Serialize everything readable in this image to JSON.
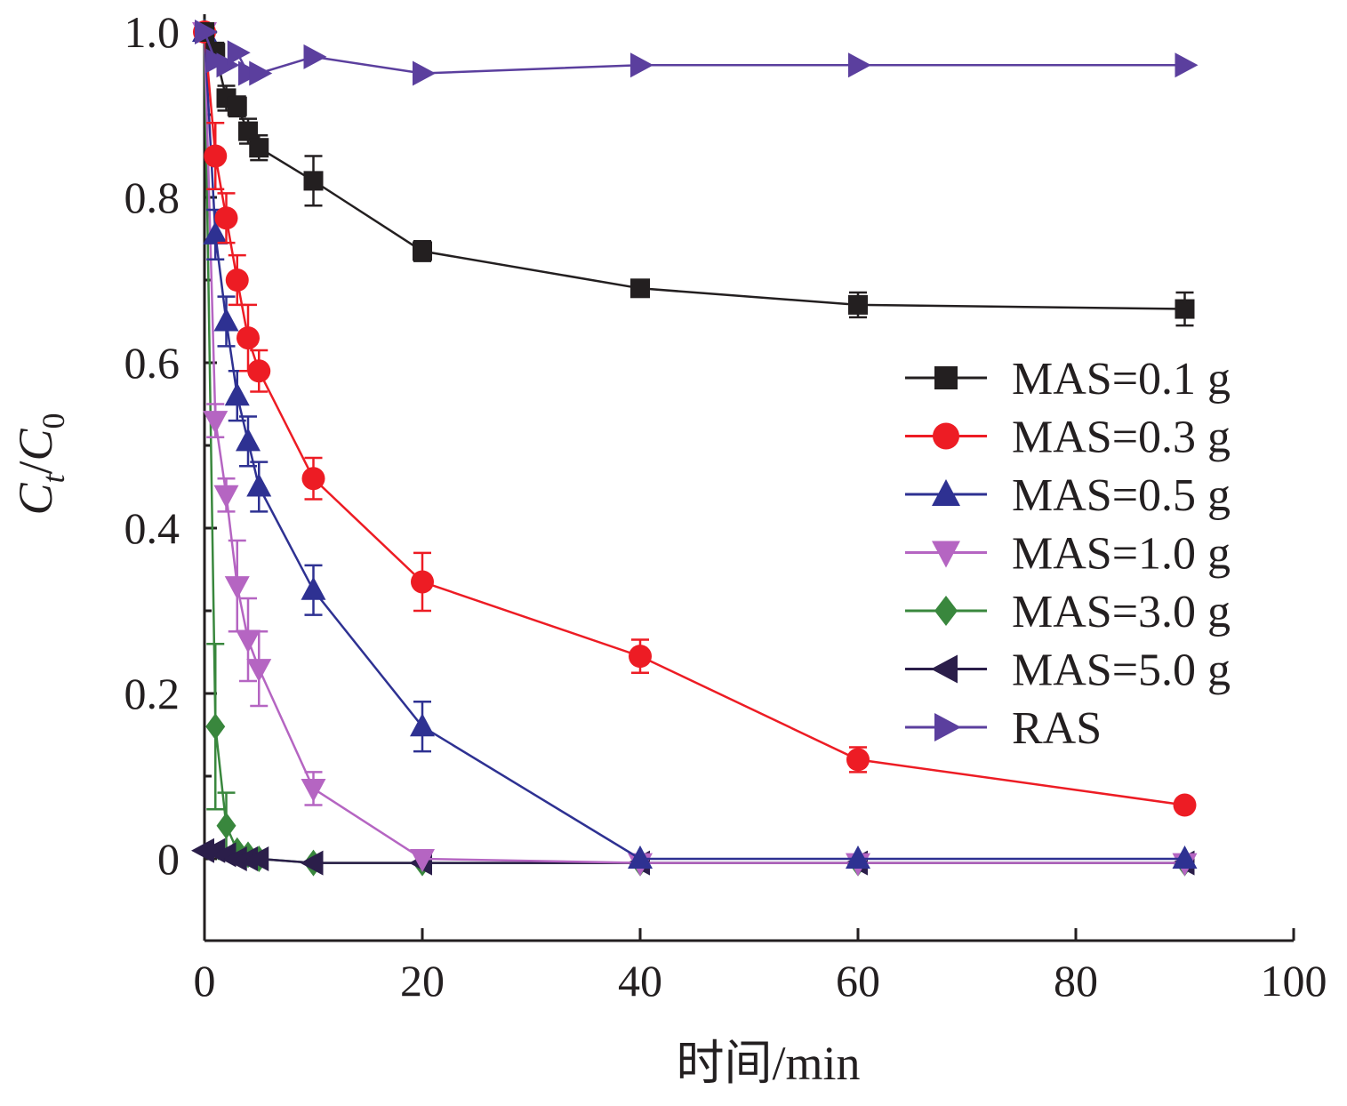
{
  "chart_data": {
    "type": "line",
    "xlabel": "时间/min",
    "ylabel_main": "C",
    "ylabel_sub1": "t",
    "ylabel_slash": "/",
    "ylabel_main2": "C",
    "ylabel_sub2": "0",
    "xlim": [
      0,
      100
    ],
    "ylim": [
      -0.1,
      1.0
    ],
    "xticks": [
      0,
      20,
      40,
      60,
      80,
      100
    ],
    "xtick_labels": [
      "0",
      "20",
      "40",
      "60",
      "80",
      "100"
    ],
    "yticks": [
      0,
      0.2,
      0.4,
      0.6,
      0.8,
      1.0
    ],
    "ytick_labels": [
      "0",
      "0.2",
      "0.4",
      "0.6",
      "0.8",
      "1.0"
    ],
    "grid": false,
    "legend_position": "right",
    "series": [
      {
        "name": "MAS=0.1 g",
        "color": "#231f20",
        "marker": "square",
        "x": [
          0,
          1,
          2,
          3,
          4,
          5,
          10,
          20,
          40,
          60,
          90
        ],
        "y": [
          1.0,
          0.975,
          0.92,
          0.91,
          0.88,
          0.86,
          0.82,
          0.735,
          0.69,
          0.67,
          0.665
        ],
        "err": [
          0.0,
          0.012,
          0.015,
          0.012,
          0.015,
          0.015,
          0.03,
          0.012,
          0.01,
          0.015,
          0.02
        ]
      },
      {
        "name": "MAS=0.3 g",
        "color": "#ed1c24",
        "marker": "circle",
        "x": [
          0,
          1,
          2,
          3,
          4,
          5,
          10,
          20,
          40,
          60,
          90
        ],
        "y": [
          1.0,
          0.85,
          0.775,
          0.7,
          0.63,
          0.59,
          0.46,
          0.335,
          0.245,
          0.12,
          0.065
        ],
        "err": [
          0.0,
          0.04,
          0.03,
          0.03,
          0.04,
          0.025,
          0.025,
          0.035,
          0.02,
          0.015,
          0.0
        ]
      },
      {
        "name": "MAS=0.5 g",
        "color": "#2e3192",
        "marker": "triangle-up",
        "x": [
          0,
          1,
          2,
          3,
          4,
          5,
          10,
          20,
          40,
          60,
          90
        ],
        "y": [
          1.0,
          0.755,
          0.65,
          0.56,
          0.505,
          0.45,
          0.325,
          0.16,
          0.0,
          0.0,
          0.0
        ],
        "err": [
          0.0,
          0.03,
          0.03,
          0.03,
          0.03,
          0.03,
          0.03,
          0.03,
          0.0,
          0.0,
          0.0
        ]
      },
      {
        "name": "MAS=1.0 g",
        "color": "#b565c2",
        "marker": "triangle-down",
        "x": [
          0,
          1,
          2,
          3,
          4,
          5,
          10,
          20,
          40,
          60,
          90
        ],
        "y": [
          1.0,
          0.53,
          0.44,
          0.33,
          0.265,
          0.23,
          0.085,
          0.0,
          -0.005,
          -0.005,
          -0.005
        ],
        "err": [
          0.0,
          0.02,
          0.02,
          0.055,
          0.05,
          0.045,
          0.02,
          0.0,
          0.0,
          0.0,
          0.0
        ]
      },
      {
        "name": "MAS=3.0 g",
        "color": "#39873d",
        "marker": "diamond",
        "x": [
          0,
          1,
          2,
          3,
          4,
          5,
          10,
          20,
          40,
          60,
          90
        ],
        "y": [
          1.0,
          0.16,
          0.04,
          0.01,
          0.005,
          0.0,
          -0.005,
          -0.005,
          -0.005,
          -0.005,
          -0.005
        ],
        "err": [
          0.0,
          0.1,
          0.04,
          0.0,
          0.0,
          0.0,
          0.0,
          0.0,
          0.0,
          0.0,
          0.0
        ]
      },
      {
        "name": "MAS=5.0 g",
        "color": "#2b1e4a",
        "marker": "triangle-left",
        "x": [
          0,
          1,
          2,
          3,
          4,
          5,
          10,
          20,
          40,
          60,
          90
        ],
        "y": [
          0.01,
          0.01,
          0.005,
          0.0,
          0.0,
          0.0,
          -0.005,
          -0.005,
          -0.005,
          -0.005,
          -0.005
        ],
        "err": [
          0.0,
          0.0,
          0.0,
          0.0,
          0.0,
          0.0,
          0.0,
          0.0,
          0.0,
          0.0,
          0.0
        ]
      },
      {
        "name": "RAS",
        "color": "#5b3f9e",
        "marker": "triangle-right",
        "x": [
          0,
          1,
          2,
          3,
          4,
          5,
          10,
          20,
          40,
          60,
          90
        ],
        "y": [
          1.0,
          0.965,
          0.96,
          0.975,
          0.95,
          0.95,
          0.97,
          0.95,
          0.96,
          0.96,
          0.96
        ],
        "err": [
          0.0,
          0.0,
          0.0,
          0.0,
          0.0,
          0.0,
          0.0,
          0.0,
          0.0,
          0.0,
          0.0
        ]
      }
    ]
  }
}
